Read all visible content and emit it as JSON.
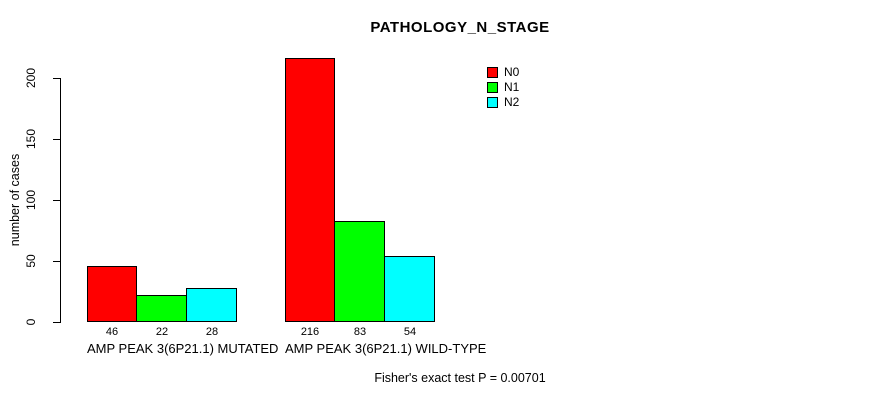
{
  "chart_data": {
    "type": "bar",
    "title": "PATHOLOGY_N_STAGE",
    "ylabel": "number of cases",
    "categories": [
      "AMP PEAK 3(6P21.1) MUTATED",
      "AMP PEAK 3(6P21.1) WILD-TYPE"
    ],
    "series": [
      {
        "name": "N0",
        "color": "#ff0000",
        "values": [
          46,
          216
        ]
      },
      {
        "name": "N1",
        "color": "#00ff00",
        "values": [
          22,
          83
        ]
      },
      {
        "name": "N2",
        "color": "#00ffff",
        "values": [
          28,
          54
        ]
      }
    ],
    "yticks": [
      0,
      50,
      100,
      150,
      200
    ],
    "ylim": [
      0,
      200
    ],
    "bar_value_labels_shown": true,
    "legend_position": "top-right",
    "grid": false,
    "axis_color": "#000000",
    "background": "#ffffff"
  },
  "footer": {
    "caption": "Fisher's exact test P = 0.00701"
  }
}
